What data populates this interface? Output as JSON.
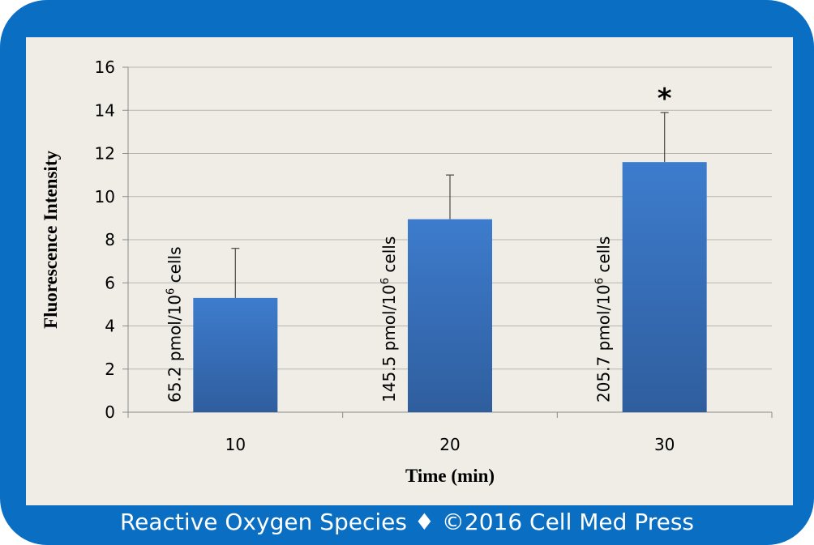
{
  "frame": {
    "border_color": "#0a6ec3",
    "panel_color": "#efede5",
    "footer_text": "Reactive Oxygen Species ♦ ©2016 Cell Med Press"
  },
  "chart_data": {
    "type": "bar",
    "title": "",
    "xlabel": "Time (min)",
    "ylabel": "Fluorescence Intensity",
    "categories": [
      "10",
      "20",
      "30"
    ],
    "values": [
      5.3,
      8.95,
      11.6
    ],
    "error_upper": [
      7.6,
      11.0,
      13.9
    ],
    "bar_labels": [
      "65.2 pmol/10",
      "145.5 pmol/10",
      "205.7 pmol/10"
    ],
    "bar_label_superscript": "6",
    "bar_label_suffix": " cells",
    "significance_marks": [
      "",
      "",
      "*"
    ],
    "ylim": [
      0,
      16
    ],
    "yticks": [
      "0",
      "2",
      "4",
      "6",
      "8",
      "10",
      "12",
      "14",
      "16"
    ],
    "grid": true,
    "legend": "none",
    "bar_color_top": "#3d7ccd",
    "bar_color_bottom": "#2f5e9e"
  }
}
